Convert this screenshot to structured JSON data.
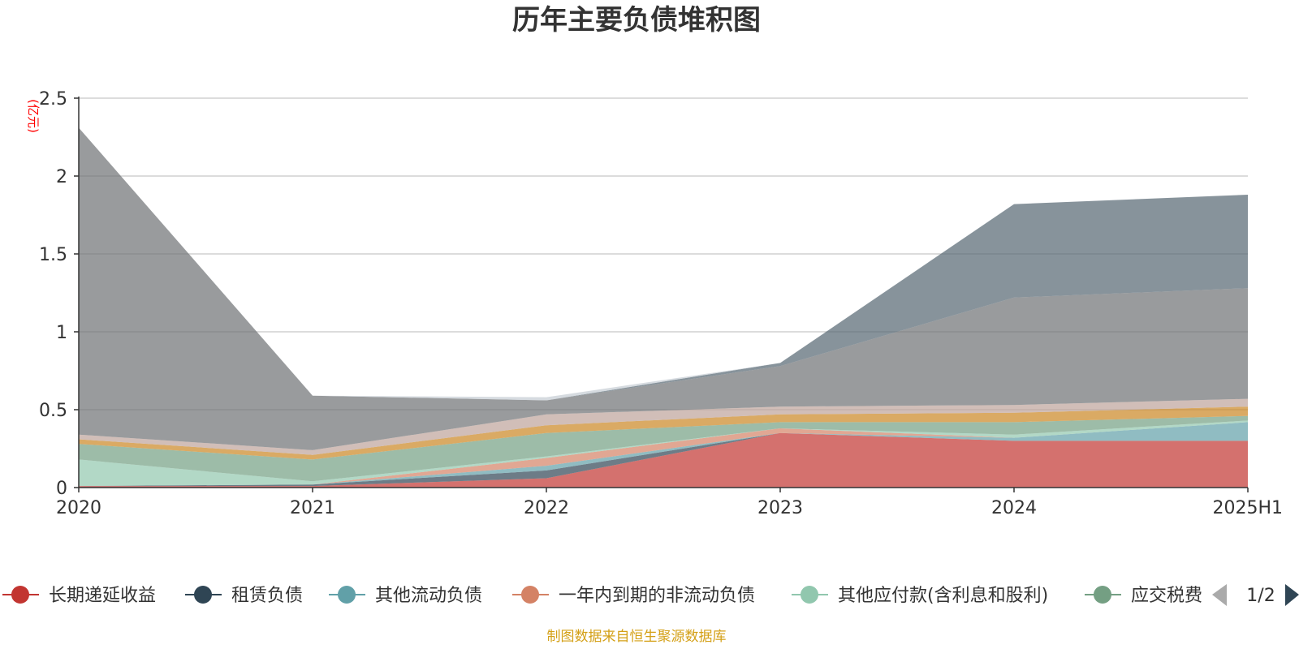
{
  "chart_data": {
    "type": "area",
    "stacked": true,
    "title": "历年主要负债堆积图",
    "yunit": "(亿元)",
    "x": [
      "2020",
      "2021",
      "2022",
      "2023",
      "2024",
      "2025H1"
    ],
    "ylim": [
      0,
      2.5
    ],
    "yticks": [
      "0",
      "0.5",
      "1",
      "1.5",
      "2",
      "2.5"
    ],
    "grid": true,
    "source": "制图数据来自恒生聚源数据库",
    "legend": {
      "position": "bottom",
      "page": "1/2",
      "visible_items": [
        "长期递延收益",
        "租赁负债",
        "其他流动负债",
        "一年内到期的非流动负债",
        "其他应付款(含利息和股利)",
        "应交税费"
      ]
    },
    "series": [
      {
        "name": "长期递延收益",
        "color": "#c23531",
        "values": [
          0.01,
          0.01,
          0.06,
          0.35,
          0.3,
          0.3
        ]
      },
      {
        "name": "租赁负债",
        "color": "#2f4554",
        "values": [
          0.0,
          0.01,
          0.05,
          0.0,
          0.0,
          0.0
        ]
      },
      {
        "name": "其他流动负债",
        "color": "#61a0a8",
        "values": [
          0.0,
          0.0,
          0.03,
          0.0,
          0.02,
          0.12
        ]
      },
      {
        "name": "一年内到期的非流动负债",
        "color": "#d48265",
        "values": [
          0.0,
          0.0,
          0.05,
          0.03,
          0.0,
          0.0
        ]
      },
      {
        "name": "其他应付款(含利息和股利)",
        "color": "#91c7ae",
        "values": [
          0.17,
          0.02,
          0.01,
          0.0,
          0.02,
          0.01
        ]
      },
      {
        "name": "应交税费",
        "color": "#749f83",
        "values": [
          0.1,
          0.14,
          0.15,
          0.04,
          0.08,
          0.03
        ]
      },
      {
        "color": "#ca8622",
        "values": [
          0.03,
          0.03,
          0.05,
          0.05,
          0.06,
          0.06
        ]
      },
      {
        "color": "#bda29a",
        "values": [
          0.03,
          0.03,
          0.07,
          0.05,
          0.05,
          0.05
        ]
      },
      {
        "color": "#6e7074",
        "values": [
          1.97,
          0.35,
          0.09,
          0.26,
          0.69,
          0.71
        ]
      },
      {
        "color": "#546570",
        "values": [
          0.0,
          0.0,
          0.0,
          0.02,
          0.6,
          0.6
        ]
      },
      {
        "color": "#c4ccd3",
        "values": [
          0.0,
          0.0,
          0.02,
          0.0,
          0.0,
          0.0
        ]
      }
    ]
  }
}
